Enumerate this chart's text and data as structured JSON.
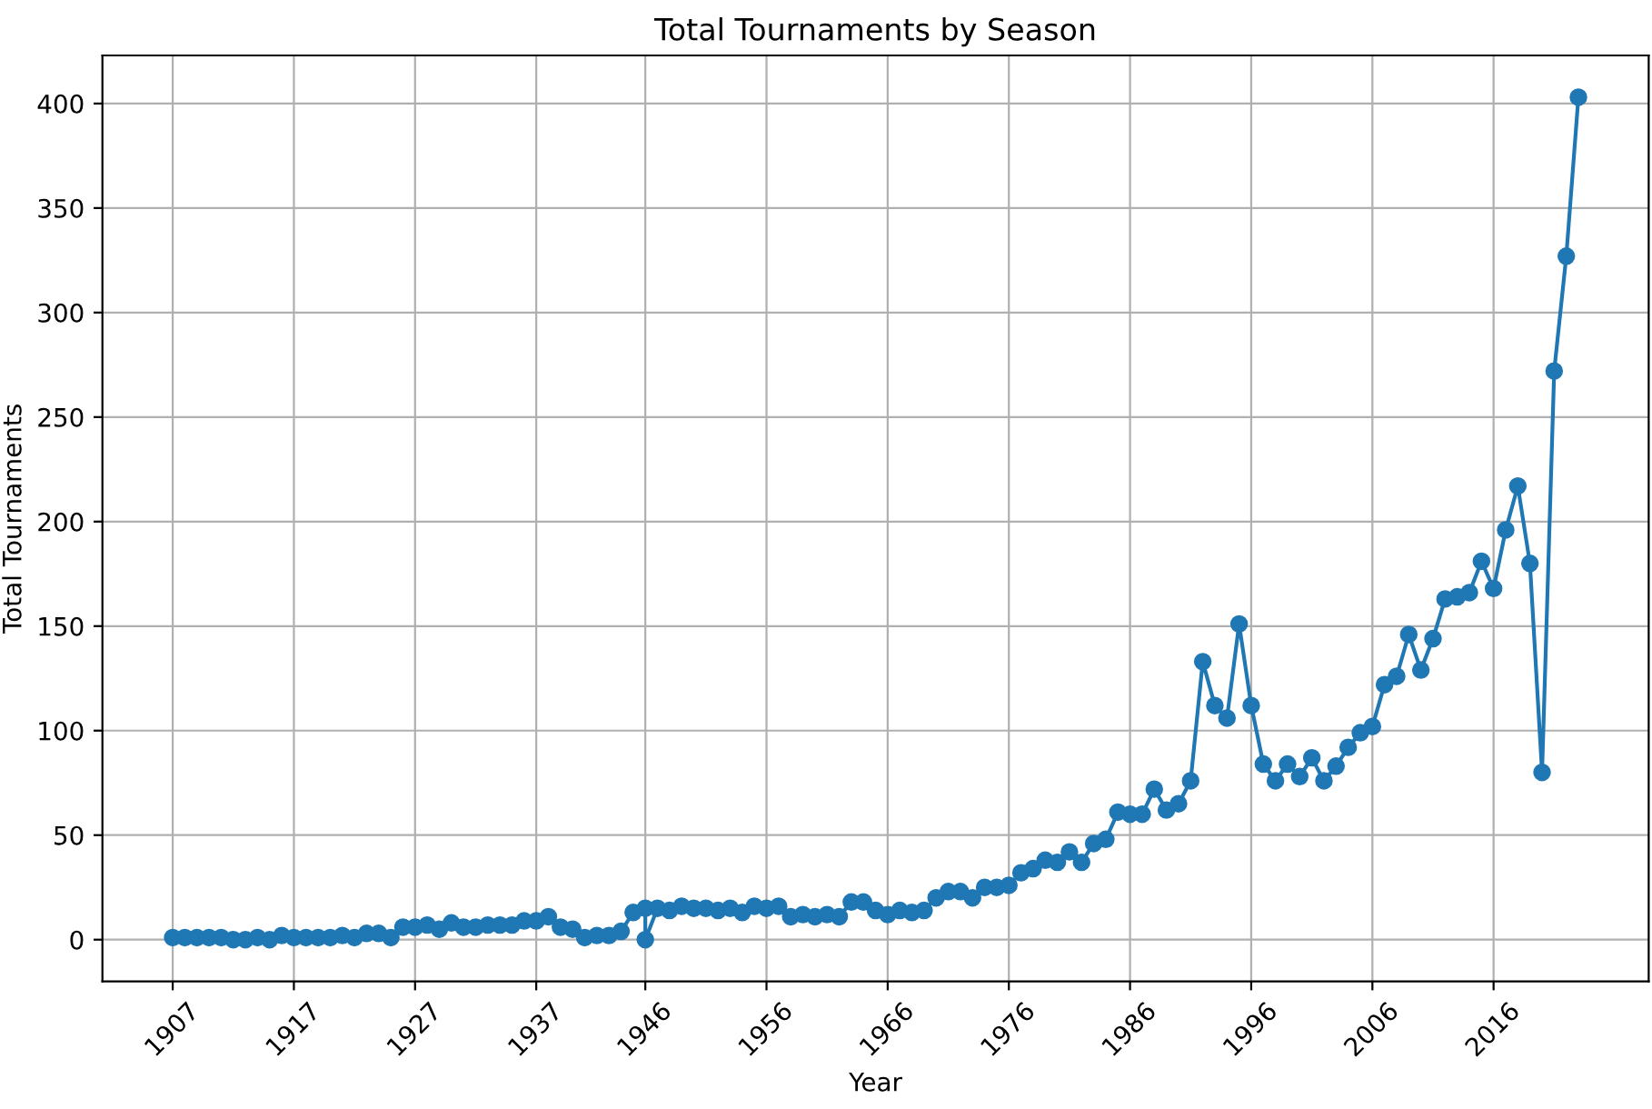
{
  "chart_data": {
    "type": "line",
    "title": "Total Tournaments by Season",
    "xlabel": "Year",
    "ylabel": "Total Tournaments",
    "x": [
      1907,
      1908,
      1909,
      1910,
      1911,
      1912,
      1913,
      1914,
      1915,
      1916,
      1917,
      1918,
      1919,
      1920,
      1921,
      1922,
      1923,
      1924,
      1925,
      1926,
      1927,
      1928,
      1929,
      1930,
      1931,
      1932,
      1933,
      1934,
      1935,
      1936,
      1937,
      1938,
      1939,
      1940,
      1941,
      1942,
      1943,
      1944,
      1945,
      1946,
      1946,
      1947,
      1948,
      1949,
      1950,
      1951,
      1952,
      1953,
      1954,
      1955,
      1956,
      1957,
      1958,
      1959,
      1960,
      1961,
      1962,
      1963,
      1964,
      1965,
      1966,
      1967,
      1968,
      1969,
      1970,
      1971,
      1972,
      1973,
      1974,
      1975,
      1976,
      1977,
      1978,
      1979,
      1980,
      1981,
      1982,
      1983,
      1984,
      1985,
      1986,
      1987,
      1988,
      1989,
      1990,
      1991,
      1992,
      1993,
      1994,
      1995,
      1996,
      1997,
      1998,
      1999,
      2000,
      2001,
      2002,
      2003,
      2004,
      2005,
      2006,
      2007,
      2008,
      2009,
      2010,
      2011,
      2012,
      2013,
      2014,
      2015,
      2016,
      2017,
      2018,
      2019,
      2020,
      2021,
      2022,
      2023
    ],
    "series": [
      {
        "color": "#1f77b4",
        "values": [
          1,
          1,
          1,
          1,
          1,
          0,
          0,
          1,
          0,
          2,
          1,
          1,
          1,
          1,
          2,
          1,
          3,
          3,
          1,
          6,
          6,
          7,
          5,
          8,
          6,
          6,
          7,
          7,
          7,
          9,
          9,
          11,
          6,
          5,
          1,
          2,
          2,
          4,
          13,
          15,
          0,
          15,
          14,
          16,
          15,
          15,
          14,
          15,
          13,
          16,
          15,
          16,
          11,
          12,
          11,
          12,
          11,
          18,
          18,
          14,
          12,
          14,
          13,
          14,
          20,
          23,
          23,
          20,
          25,
          25,
          26,
          32,
          34,
          38,
          37,
          42,
          37,
          46,
          48,
          61,
          60,
          60,
          72,
          62,
          65,
          76,
          133,
          112,
          106,
          151,
          112,
          84,
          76,
          84,
          78,
          87,
          76,
          83,
          92,
          99,
          102,
          122,
          126,
          146,
          129,
          144,
          163,
          164,
          166,
          181,
          168,
          196,
          217,
          180,
          80,
          272,
          327,
          403
        ]
      }
    ],
    "xlim": [
      1901.2,
      2028.8
    ],
    "xticks": [
      1907,
      1917,
      1927,
      1937,
      1946,
      1956,
      1966,
      1976,
      1986,
      1996,
      2006,
      2016
    ],
    "ylim": [
      -20,
      423
    ],
    "yticks": [
      0,
      50,
      100,
      150,
      200,
      250,
      300,
      350,
      400
    ],
    "grid": true,
    "marker": "circle",
    "line_style": "solid",
    "legend": false
  }
}
